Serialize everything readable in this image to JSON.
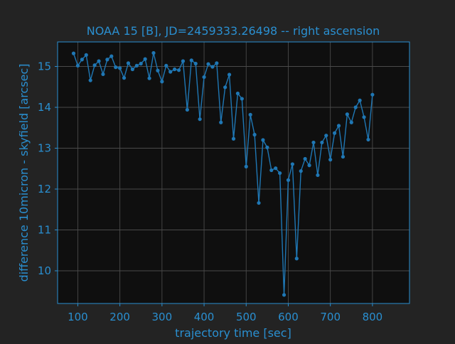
{
  "colors": {
    "figure_bg": "#232323",
    "plot_bg": "#0f0f0f",
    "accent": "#2a8fd0",
    "series": "#1f77b4",
    "grid": "#4a4a4a"
  },
  "chart_data": {
    "type": "line",
    "title": "NOAA 15 [B], JD=2459333.26498 -- right ascension",
    "xlabel": "trajectory time [sec]",
    "ylabel": "difference 10micron - skyfield [arcsec]",
    "xlim": [
      52,
      888
    ],
    "ylim": [
      9.2,
      15.6
    ],
    "xticks": [
      100,
      200,
      300,
      400,
      500,
      600,
      700,
      800
    ],
    "yticks": [
      10,
      11,
      12,
      13,
      14,
      15
    ],
    "grid": true,
    "markers": true,
    "series": [
      {
        "x": [
          90,
          100,
          110,
          120,
          130,
          140,
          150,
          160,
          170,
          180,
          190,
          200,
          210,
          220,
          230,
          240,
          250,
          260,
          270,
          280,
          290,
          300,
          310,
          320,
          330,
          340,
          350,
          360,
          370,
          380,
          390,
          400,
          410,
          420,
          430,
          440,
          450,
          460,
          470,
          480,
          490,
          500,
          510,
          520,
          530,
          540,
          550,
          560,
          570,
          580,
          590,
          600,
          610,
          620,
          630,
          640,
          650,
          660,
          670,
          680,
          690,
          700,
          710,
          720,
          730,
          740,
          750,
          760,
          770,
          780,
          790,
          800
        ],
        "y": [
          15.32,
          15.02,
          15.17,
          15.28,
          14.66,
          15.03,
          15.13,
          14.81,
          15.17,
          15.25,
          14.98,
          14.96,
          14.72,
          15.08,
          14.93,
          15.02,
          15.07,
          15.18,
          14.71,
          15.33,
          14.9,
          14.63,
          15.02,
          14.87,
          14.93,
          14.91,
          15.13,
          13.94,
          15.15,
          15.07,
          13.71,
          14.74,
          15.06,
          14.99,
          15.08,
          13.63,
          14.49,
          14.8,
          13.23,
          14.34,
          14.21,
          12.55,
          13.82,
          13.33,
          11.66,
          13.2,
          13.02,
          12.46,
          12.51,
          12.39,
          9.41,
          12.22,
          12.61,
          10.3,
          12.44,
          12.74,
          12.58,
          13.14,
          12.34,
          13.14,
          13.31,
          12.72,
          13.37,
          13.55,
          12.79,
          13.83,
          13.63,
          14.0,
          14.17,
          13.76,
          13.21,
          14.31
        ]
      }
    ]
  }
}
